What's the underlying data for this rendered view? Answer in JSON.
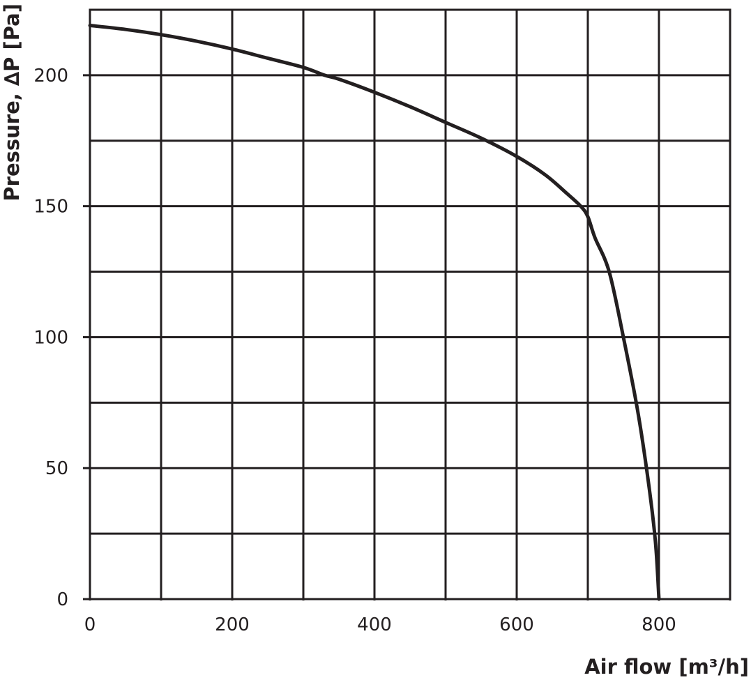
{
  "chart_data": {
    "type": "line",
    "title": "",
    "xlabel": "Air flow [m³/h]",
    "ylabel": "Pressure, ∆P [Pa]",
    "xlim": [
      0,
      900
    ],
    "ylim": [
      0,
      225
    ],
    "x_ticks": [
      0,
      200,
      400,
      600,
      800
    ],
    "x_tick_labels": [
      "0",
      "200",
      "400",
      "600",
      "800"
    ],
    "y_ticks": [
      0,
      50,
      100,
      150,
      200
    ],
    "y_tick_labels": [
      "0",
      "50",
      "100",
      "150",
      "200"
    ],
    "x_grid": [
      0,
      100,
      200,
      300,
      400,
      500,
      600,
      700,
      800,
      900
    ],
    "y_grid": [
      0,
      25,
      50,
      75,
      100,
      125,
      150,
      175,
      200,
      225
    ],
    "grid": true,
    "legend": "none",
    "colors": {
      "curve": "#231f20",
      "grid": "#231f20",
      "text": "#231f20"
    },
    "series": [
      {
        "x": [
          0,
          50,
          100,
          150,
          200,
          250,
          300,
          330,
          350,
          400,
          450,
          500,
          550,
          600,
          640,
          670,
          690,
          700,
          710,
          730,
          750,
          770,
          785,
          795,
          800
        ],
        "y": [
          219,
          217.5,
          215.5,
          213,
          210,
          206.5,
          203,
          200,
          198.5,
          193.5,
          188,
          182,
          176,
          169,
          162,
          155,
          150,
          146,
          138,
          125,
          100,
          72,
          45,
          22,
          0
        ]
      }
    ]
  }
}
